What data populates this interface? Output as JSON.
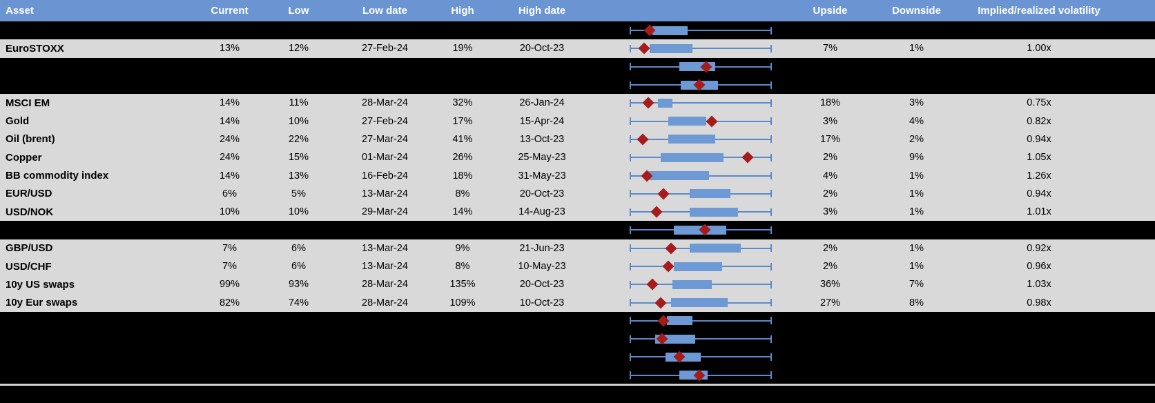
{
  "colors": {
    "header_bg": "#6B94D3",
    "header_text": "#FFFFFF",
    "row_bg": "#D9D9D9",
    "gap_bg": "#000000",
    "text": "#000000",
    "whisker": "#5A8ACB",
    "box": "#6D99D4",
    "marker": "#A61C1C",
    "bottom_line": "#D2D2D2"
  },
  "chart_data": {
    "type": "table",
    "header": {
      "asset": "Asset",
      "current": "Current",
      "low": "Low",
      "low_date": "Low date",
      "high": "High",
      "high_date": "High date",
      "upside": "Upside",
      "downside": "Downside",
      "implied_realized": "Implied/realized volatility"
    },
    "boxplot_units": "positions normalized 0-1 across the plot track; every whisker spans the full track",
    "rows": [
      {
        "kind": "boxplot_only",
        "boxplot": {
          "whisker_lo": 0,
          "whisker_hi": 1,
          "box_lo": 0.16,
          "box_hi": 0.41,
          "marker": 0.14
        }
      },
      {
        "kind": "data",
        "asset": "EuroSTOXX",
        "current": "13%",
        "low": "12%",
        "low_date": "27-Feb-24",
        "high": "19%",
        "high_date": "20-Oct-23",
        "upside": "7%",
        "downside": "1%",
        "implied_realized": "1.00x",
        "boxplot": {
          "whisker_lo": 0,
          "whisker_hi": 1,
          "box_lo": 0.14,
          "box_hi": 0.44,
          "marker": 0.1
        }
      },
      {
        "kind": "boxplot_only",
        "boxplot": {
          "whisker_lo": 0,
          "whisker_hi": 1,
          "box_lo": 0.35,
          "box_hi": 0.6,
          "marker": 0.54
        }
      },
      {
        "kind": "boxplot_only",
        "boxplot": {
          "whisker_lo": 0,
          "whisker_hi": 1,
          "box_lo": 0.36,
          "box_hi": 0.62,
          "marker": 0.49
        }
      },
      {
        "kind": "data",
        "asset": "MSCI EM",
        "current": "14%",
        "low": "11%",
        "low_date": "28-Mar-24",
        "high": "32%",
        "high_date": "26-Jan-24",
        "upside": "18%",
        "downside": "3%",
        "implied_realized": "0.75x",
        "boxplot": {
          "whisker_lo": 0,
          "whisker_hi": 1,
          "box_lo": 0.2,
          "box_hi": 0.3,
          "marker": 0.13
        }
      },
      {
        "kind": "data",
        "asset": "Gold",
        "current": "14%",
        "low": "10%",
        "low_date": "27-Feb-24",
        "high": "17%",
        "high_date": "15-Apr-24",
        "upside": "3%",
        "downside": "4%",
        "implied_realized": "0.82x",
        "boxplot": {
          "whisker_lo": 0,
          "whisker_hi": 1,
          "box_lo": 0.27,
          "box_hi": 0.54,
          "marker": 0.58
        }
      },
      {
        "kind": "data",
        "asset": "Oil (brent)",
        "current": "24%",
        "low": "22%",
        "low_date": "27-Mar-24",
        "high": "41%",
        "high_date": "13-Oct-23",
        "upside": "17%",
        "downside": "2%",
        "implied_realized": "0.94x",
        "boxplot": {
          "whisker_lo": 0,
          "whisker_hi": 1,
          "box_lo": 0.27,
          "box_hi": 0.6,
          "marker": 0.09
        }
      },
      {
        "kind": "data",
        "asset": "Copper",
        "current": "24%",
        "low": "15%",
        "low_date": "01-Mar-24",
        "high": "26%",
        "high_date": "25-May-23",
        "upside": "2%",
        "downside": "9%",
        "implied_realized": "1.05x",
        "boxplot": {
          "whisker_lo": 0,
          "whisker_hi": 1,
          "box_lo": 0.22,
          "box_hi": 0.66,
          "marker": 0.83
        }
      },
      {
        "kind": "data",
        "asset": "BB commodity index",
        "current": "14%",
        "low": "13%",
        "low_date": "16-Feb-24",
        "high": "18%",
        "high_date": "31-May-23",
        "upside": "4%",
        "downside": "1%",
        "implied_realized": "1.26x",
        "boxplot": {
          "whisker_lo": 0,
          "whisker_hi": 1,
          "box_lo": 0.13,
          "box_hi": 0.56,
          "marker": 0.12
        }
      },
      {
        "kind": "data",
        "asset": "EUR/USD",
        "current": "6%",
        "low": "5%",
        "low_date": "13-Mar-24",
        "high": "8%",
        "high_date": "20-Oct-23",
        "upside": "2%",
        "downside": "1%",
        "implied_realized": "0.94x",
        "boxplot": {
          "whisker_lo": 0,
          "whisker_hi": 1,
          "box_lo": 0.42,
          "box_hi": 0.71,
          "marker": 0.24
        }
      },
      {
        "kind": "data",
        "asset": "USD/NOK",
        "current": "10%",
        "low": "10%",
        "low_date": "29-Mar-24",
        "high": "14%",
        "high_date": "14-Aug-23",
        "upside": "3%",
        "downside": "1%",
        "implied_realized": "1.01x",
        "boxplot": {
          "whisker_lo": 0,
          "whisker_hi": 1,
          "box_lo": 0.42,
          "box_hi": 0.76,
          "marker": 0.19
        }
      },
      {
        "kind": "boxplot_only",
        "boxplot": {
          "whisker_lo": 0,
          "whisker_hi": 1,
          "box_lo": 0.31,
          "box_hi": 0.68,
          "marker": 0.53
        }
      },
      {
        "kind": "data",
        "asset": "GBP/USD",
        "current": "7%",
        "low": "6%",
        "low_date": "13-Mar-24",
        "high": "9%",
        "high_date": "21-Jun-23",
        "upside": "2%",
        "downside": "1%",
        "implied_realized": "0.92x",
        "boxplot": {
          "whisker_lo": 0,
          "whisker_hi": 1,
          "box_lo": 0.42,
          "box_hi": 0.78,
          "marker": 0.29
        }
      },
      {
        "kind": "data",
        "asset": "USD/CHF",
        "current": "7%",
        "low": "6%",
        "low_date": "13-Mar-24",
        "high": "8%",
        "high_date": "10-May-23",
        "upside": "2%",
        "downside": "1%",
        "implied_realized": "0.96x",
        "boxplot": {
          "whisker_lo": 0,
          "whisker_hi": 1,
          "box_lo": 0.31,
          "box_hi": 0.65,
          "marker": 0.27
        }
      },
      {
        "kind": "data",
        "asset": "10y US swaps",
        "current": "99%",
        "low": "93%",
        "low_date": "28-Mar-24",
        "high": "135%",
        "high_date": "20-Oct-23",
        "upside": "36%",
        "downside": "7%",
        "implied_realized": "1.03x",
        "boxplot": {
          "whisker_lo": 0,
          "whisker_hi": 1,
          "box_lo": 0.3,
          "box_hi": 0.58,
          "marker": 0.16
        }
      },
      {
        "kind": "data",
        "asset": "10y Eur swaps",
        "current": "82%",
        "low": "74%",
        "low_date": "28-Mar-24",
        "high": "109%",
        "high_date": "10-Oct-23",
        "upside": "27%",
        "downside": "8%",
        "implied_realized": "0.98x",
        "boxplot": {
          "whisker_lo": 0,
          "whisker_hi": 1,
          "box_lo": 0.29,
          "box_hi": 0.69,
          "marker": 0.22
        }
      },
      {
        "kind": "boxplot_only",
        "boxplot": {
          "whisker_lo": 0,
          "whisker_hi": 1,
          "box_lo": 0.26,
          "box_hi": 0.44,
          "marker": 0.24
        }
      },
      {
        "kind": "boxplot_only",
        "boxplot": {
          "whisker_lo": 0,
          "whisker_hi": 1,
          "box_lo": 0.18,
          "box_hi": 0.46,
          "marker": 0.23
        }
      },
      {
        "kind": "boxplot_only",
        "boxplot": {
          "whisker_lo": 0,
          "whisker_hi": 1,
          "box_lo": 0.25,
          "box_hi": 0.5,
          "marker": 0.35
        }
      },
      {
        "kind": "boxplot_only",
        "boxplot": {
          "whisker_lo": 0,
          "whisker_hi": 1,
          "box_lo": 0.35,
          "box_hi": 0.55,
          "marker": 0.49
        }
      }
    ]
  }
}
